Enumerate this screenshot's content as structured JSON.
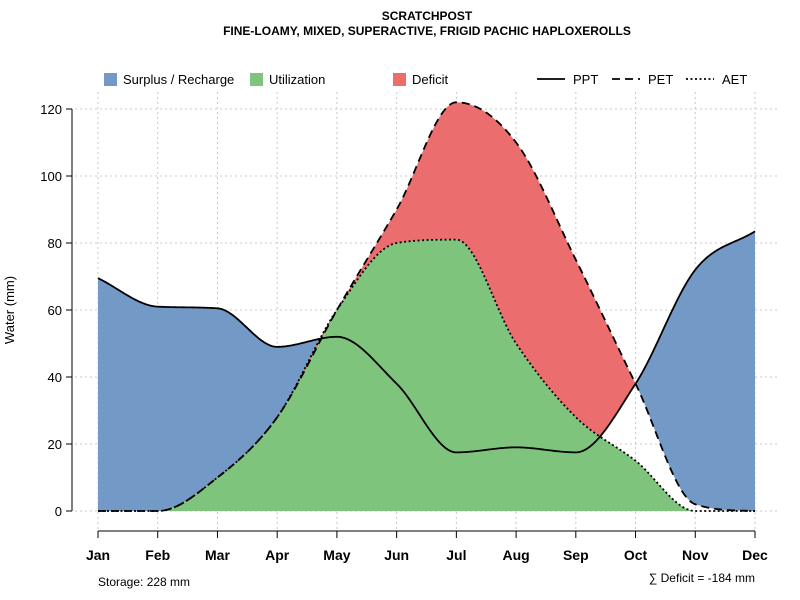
{
  "chart_data": {
    "type": "area",
    "title": "SCRATCHPOST",
    "subtitle": "FINE-LOAMY, MIXED, SUPERACTIVE, FRIGID PACHIC HAPLOXEROLLS",
    "ylabel": "Water (mm)",
    "xlabel": "",
    "ylim": [
      0,
      125
    ],
    "yticks": [
      0,
      20,
      40,
      60,
      80,
      100,
      120
    ],
    "grid": true,
    "legend_position": "top",
    "categories": [
      "Jan",
      "Feb",
      "Mar",
      "Apr",
      "May",
      "Jun",
      "Jul",
      "Aug",
      "Sep",
      "Oct",
      "Nov",
      "Dec"
    ],
    "series": [
      {
        "name": "PPT",
        "style": "solid",
        "values": [
          69.5,
          61,
          60.5,
          49,
          52,
          38,
          17.5,
          19,
          17.5,
          38,
          72,
          83.5
        ]
      },
      {
        "name": "PET",
        "style": "dashed",
        "values": [
          0,
          0,
          10,
          28,
          60,
          90,
          122,
          110,
          75,
          38,
          2,
          0
        ]
      },
      {
        "name": "AET",
        "style": "dotted",
        "values": [
          0,
          0,
          10,
          28,
          60,
          80,
          81,
          50,
          28,
          15,
          0,
          0
        ]
      }
    ],
    "area_legend": [
      {
        "name": "Surplus / Recharge",
        "color": "#7399C6"
      },
      {
        "name": "Utilization",
        "color": "#7FC47C"
      },
      {
        "name": "Deficit",
        "color": "#EC6D6E"
      }
    ],
    "footer": {
      "storage": "Storage: 228 mm",
      "deficit": "∑ Deficit = -184 mm"
    }
  }
}
